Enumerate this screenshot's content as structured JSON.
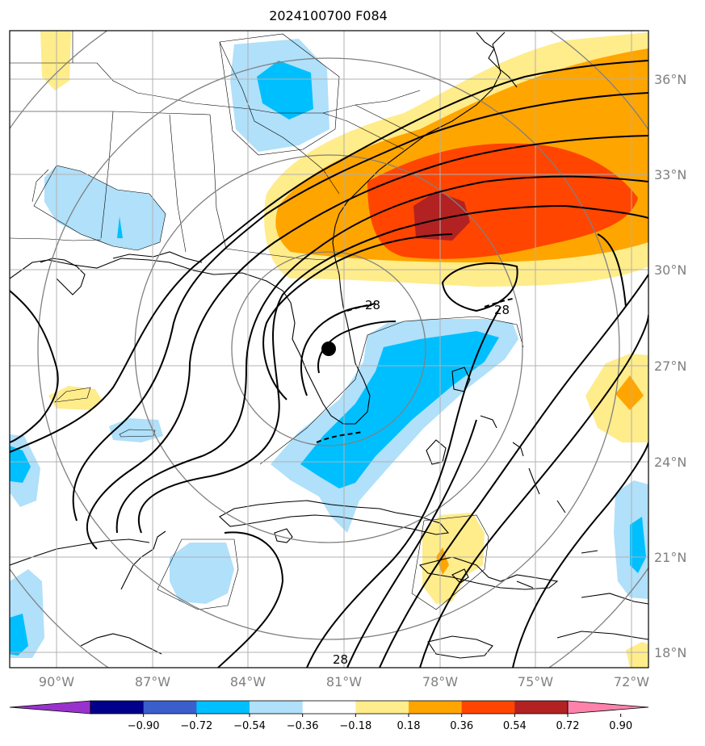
{
  "title": "2024100700 F084",
  "lat_labels": [
    "36°N",
    "33°N",
    "30°N",
    "27°N",
    "24°N",
    "21°N",
    "18°N"
  ],
  "lon_labels": [
    "90°W",
    "87°W",
    "84°W",
    "81°W",
    "78°W",
    "75°W",
    "72°W"
  ],
  "contour_labels": [
    "28",
    "28",
    "28"
  ],
  "colorbar": {
    "ticks": [
      "−0.90",
      "−0.72",
      "−0.54",
      "−0.36",
      "−0.18",
      "0.18",
      "0.36",
      "0.54",
      "0.72",
      "0.90"
    ],
    "colors": [
      "#9932cc",
      "#00008b",
      "#3a5fcd",
      "#00bfff",
      "#b0e0fa",
      "#ffffff",
      "#ffec8b",
      "#ffa500",
      "#ff4500",
      "#b22222",
      "#ff82ab"
    ]
  },
  "colors": {
    "positive_light": "#ffec8b",
    "positive_mid": "#ffa500",
    "positive_strong": "#ff4500",
    "positive_max": "#b22222",
    "negative_light": "#b0e0fa",
    "negative_mid": "#00bfff",
    "gridline": "#b0b0b0",
    "range_ring": "#808080"
  },
  "storm_marker": "black-dot"
}
